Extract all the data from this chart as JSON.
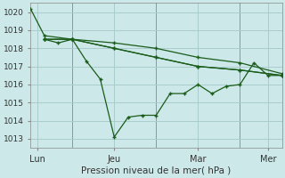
{
  "background_color": "#cce8e8",
  "grid_color": "#aacccc",
  "line_color": "#1a5c1a",
  "xlabel": "Pression niveau de la mer( hPa )",
  "xlim": [
    0,
    72
  ],
  "ylim": [
    1012.5,
    1020.5
  ],
  "yticks": [
    1013,
    1014,
    1015,
    1016,
    1017,
    1018,
    1019,
    1020
  ],
  "xtick_positions": [
    2,
    24,
    48,
    68
  ],
  "xtick_labels": [
    "Lun",
    "Jeu",
    "Mar",
    "Mer"
  ],
  "vlines": [
    12,
    36,
    60
  ],
  "series1": {
    "x": [
      0,
      4,
      12,
      24,
      36,
      48,
      60,
      72
    ],
    "y": [
      1020.2,
      1018.7,
      1018.5,
      1018.0,
      1017.5,
      1017.0,
      1016.8,
      1016.5
    ]
  },
  "series2": {
    "x": [
      4,
      12,
      24,
      36,
      48,
      60,
      72
    ],
    "y": [
      1018.5,
      1018.5,
      1018.3,
      1018.0,
      1017.5,
      1017.2,
      1016.6
    ]
  },
  "series3": {
    "x": [
      4,
      12,
      24,
      36,
      48,
      60,
      72
    ],
    "y": [
      1018.5,
      1018.5,
      1018.0,
      1017.5,
      1017.0,
      1016.8,
      1016.5
    ]
  },
  "series4": {
    "x": [
      4,
      8,
      12,
      16,
      20,
      24,
      28,
      32,
      36,
      40,
      44,
      48,
      52,
      56,
      60,
      64,
      68,
      72
    ],
    "y": [
      1018.5,
      1018.3,
      1018.5,
      1017.3,
      1016.3,
      1013.1,
      1014.2,
      1014.3,
      1014.3,
      1015.5,
      1015.5,
      1016.0,
      1015.5,
      1015.9,
      1016.0,
      1017.2,
      1016.5,
      1016.5
    ]
  }
}
